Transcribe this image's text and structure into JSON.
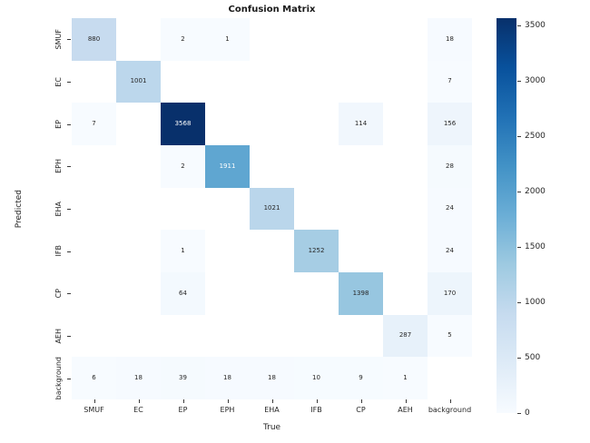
{
  "title": "Confusion Matrix",
  "axes": {
    "xlabel": "True",
    "ylabel": "Predicted"
  },
  "chart_data": {
    "type": "heatmap",
    "title": "Confusion Matrix",
    "xlabel": "True",
    "ylabel": "Predicted",
    "x_categories": [
      "SMUF",
      "EC",
      "EP",
      "EPH",
      "EHA",
      "IFB",
      "CP",
      "AEH",
      "background"
    ],
    "y_categories": [
      "SMUF",
      "EC",
      "EP",
      "EPH",
      "EHA",
      "IFB",
      "CP",
      "AEH",
      "background"
    ],
    "matrix": [
      [
        880,
        null,
        2,
        1,
        null,
        null,
        null,
        null,
        18
      ],
      [
        null,
        1001,
        null,
        null,
        null,
        null,
        null,
        null,
        7
      ],
      [
        7,
        null,
        3568,
        null,
        null,
        null,
        114,
        null,
        156
      ],
      [
        null,
        null,
        2,
        1911,
        null,
        null,
        null,
        null,
        28
      ],
      [
        null,
        null,
        null,
        null,
        1021,
        null,
        null,
        null,
        24
      ],
      [
        null,
        null,
        1,
        null,
        null,
        1252,
        null,
        null,
        24
      ],
      [
        null,
        null,
        64,
        null,
        null,
        null,
        1398,
        null,
        170
      ],
      [
        null,
        null,
        null,
        null,
        null,
        null,
        null,
        287,
        5
      ],
      [
        6,
        18,
        39,
        18,
        18,
        10,
        9,
        1,
        null
      ]
    ],
    "vmin": 0,
    "vmax": 3568,
    "colormap": "Blues",
    "colorbar_ticks": [
      0,
      500,
      1000,
      1500,
      2000,
      2500,
      3000,
      3500
    ],
    "colorbar_position": "right",
    "grid": false,
    "legend_position": "none"
  },
  "colors": {
    "figure_background": "#ffffff",
    "text": "#262626",
    "annotation_dark": "#262626",
    "annotation_light": "#ffffff",
    "empty_cell": "#ffffff",
    "colormap_stops": [
      "#f7fbff",
      "#deebf7",
      "#c6dbef",
      "#9ecae1",
      "#6baed6",
      "#4292c6",
      "#2171b5",
      "#08519c",
      "#08306b"
    ]
  }
}
